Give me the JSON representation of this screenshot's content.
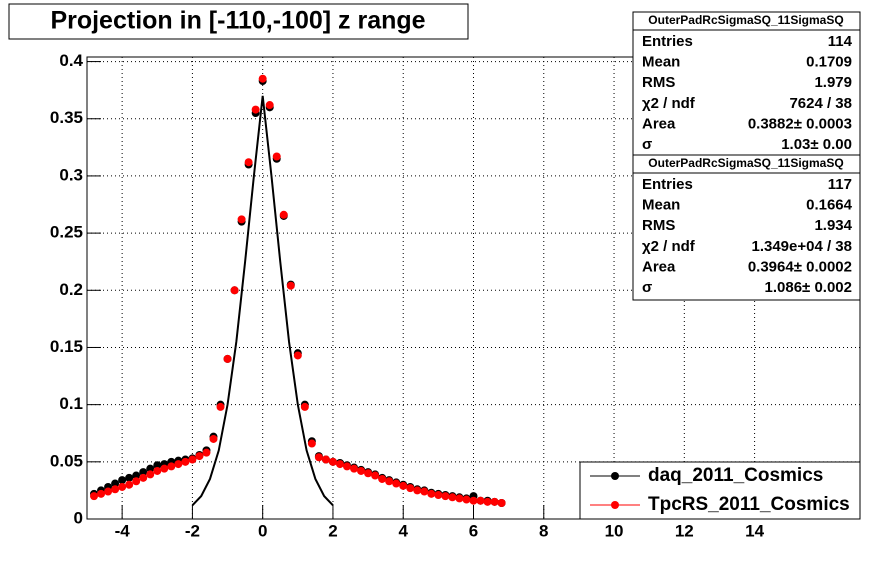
{
  "chart_data": {
    "type": "scatter",
    "title": "Projection in [-110,-100] z range",
    "xlim": [
      -5,
      17
    ],
    "ylim": [
      0,
      0.404
    ],
    "xticks": [
      -4,
      -2,
      0,
      2,
      4,
      6,
      8,
      10,
      12,
      14
    ],
    "yticks": [
      0,
      0.05,
      0.1,
      0.15,
      0.2,
      0.25,
      0.3,
      0.35,
      0.4
    ],
    "grid": true,
    "legend": "bottom-right",
    "series": [
      {
        "name": "daq_2011_Cosmics",
        "color": "#000000",
        "x": [
          -4.8,
          -4.6,
          -4.4,
          -4.2,
          -4.0,
          -3.8,
          -3.6,
          -3.4,
          -3.2,
          -3.0,
          -2.8,
          -2.6,
          -2.4,
          -2.2,
          -2.0,
          -1.8,
          -1.6,
          -1.4,
          -1.2,
          -1.0,
          -0.8,
          -0.6,
          -0.4,
          -0.2,
          0,
          0.2,
          0.4,
          0.6,
          0.8,
          1.0,
          1.2,
          1.4,
          1.6,
          1.8,
          2.0,
          2.2,
          2.4,
          2.6,
          2.8,
          3.0,
          3.2,
          3.4,
          3.6,
          3.8,
          4.0,
          4.2,
          4.4,
          4.6,
          4.8,
          5.0,
          5.2,
          5.4,
          5.6,
          5.8,
          6.0,
          6.2,
          6.4,
          6.6,
          6.8
        ],
        "values": [
          0.022,
          0.025,
          0.028,
          0.031,
          0.034,
          0.036,
          0.038,
          0.041,
          0.044,
          0.047,
          0.048,
          0.05,
          0.051,
          0.052,
          0.053,
          0.056,
          0.06,
          0.072,
          0.1,
          0.14,
          0.2,
          0.26,
          0.31,
          0.355,
          0.383,
          0.36,
          0.315,
          0.265,
          0.205,
          0.145,
          0.1,
          0.068,
          0.055,
          0.052,
          0.05,
          0.049,
          0.047,
          0.045,
          0.043,
          0.041,
          0.039,
          0.036,
          0.034,
          0.032,
          0.03,
          0.028,
          0.026,
          0.025,
          0.023,
          0.022,
          0.021,
          0.02,
          0.019,
          0.018,
          0.02,
          0.016,
          0.016,
          0.015,
          0.014
        ]
      },
      {
        "name": "TpcRS_2011_Cosmics",
        "color": "#ff0000",
        "x": [
          -4.8,
          -4.6,
          -4.4,
          -4.2,
          -4.0,
          -3.8,
          -3.6,
          -3.4,
          -3.2,
          -3.0,
          -2.8,
          -2.6,
          -2.4,
          -2.2,
          -2.0,
          -1.8,
          -1.6,
          -1.4,
          -1.2,
          -1.0,
          -0.8,
          -0.6,
          -0.4,
          -0.2,
          0,
          0.2,
          0.4,
          0.6,
          0.8,
          1.0,
          1.2,
          1.4,
          1.6,
          1.8,
          2.0,
          2.2,
          2.4,
          2.6,
          2.8,
          3.0,
          3.2,
          3.4,
          3.6,
          3.8,
          4.0,
          4.2,
          4.4,
          4.6,
          4.8,
          5.0,
          5.2,
          5.4,
          5.6,
          5.8,
          6.0,
          6.2,
          6.4,
          6.6,
          6.8
        ],
        "values": [
          0.02,
          0.022,
          0.024,
          0.026,
          0.028,
          0.03,
          0.033,
          0.036,
          0.039,
          0.042,
          0.044,
          0.046,
          0.048,
          0.05,
          0.052,
          0.055,
          0.058,
          0.07,
          0.098,
          0.14,
          0.2,
          0.262,
          0.312,
          0.358,
          0.385,
          0.362,
          0.317,
          0.266,
          0.204,
          0.143,
          0.098,
          0.066,
          0.054,
          0.052,
          0.05,
          0.048,
          0.046,
          0.044,
          0.042,
          0.04,
          0.038,
          0.035,
          0.033,
          0.031,
          0.029,
          0.027,
          0.025,
          0.024,
          0.022,
          0.021,
          0.02,
          0.019,
          0.018,
          0.017,
          0.016,
          0.016,
          0.015,
          0.015,
          0.014
        ]
      }
    ],
    "fit_line": {
      "color": "#000000",
      "x": [
        -2,
        -1.75,
        -1.5,
        -1.25,
        -1,
        -0.75,
        -0.5,
        -0.25,
        0,
        0.25,
        0.5,
        0.75,
        1,
        1.25,
        1.5,
        1.75,
        2
      ],
      "values": [
        0.012,
        0.02,
        0.035,
        0.06,
        0.1,
        0.155,
        0.225,
        0.3,
        0.37,
        0.3,
        0.225,
        0.155,
        0.1,
        0.06,
        0.035,
        0.02,
        0.012
      ]
    },
    "stats_boxes": [
      {
        "title": "OuterPadRcSigmaSQ_11SigmaSQ",
        "rows": [
          {
            "label": "Entries",
            "value": "114"
          },
          {
            "label": "Mean",
            "value": "0.1709"
          },
          {
            "label": "RMS",
            "value": "1.979"
          },
          {
            "label": "χ2 / ndf",
            "value": "7624 / 38"
          },
          {
            "label": "Area",
            "value": "0.3882± 0.0003"
          },
          {
            "label": "σ",
            "value": "1.03± 0.00"
          }
        ]
      },
      {
        "title": "OuterPadRcSigmaSQ_11SigmaSQ",
        "rows": [
          {
            "label": "Entries",
            "value": "117"
          },
          {
            "label": "Mean",
            "value": "0.1664"
          },
          {
            "label": "RMS",
            "value": "1.934"
          },
          {
            "label": "χ2 / ndf",
            "value": "1.349e+04 / 38"
          },
          {
            "label": "Area",
            "value": "0.3964± 0.0002"
          },
          {
            "label": "σ",
            "value": "1.086± 0.002"
          }
        ]
      }
    ]
  }
}
